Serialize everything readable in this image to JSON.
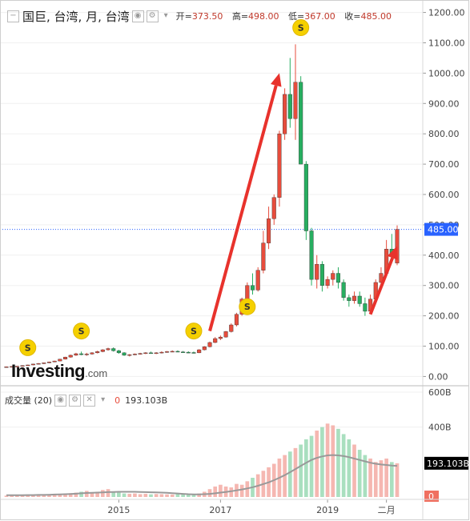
{
  "header": {
    "collapse_icon": "minus-square-icon",
    "title": "国巨, 台湾, 月, 台湾",
    "eye_icon": "eye-icon",
    "gear_icon": "gear-icon",
    "dropdown_icon": "caret-down-icon",
    "open_label": "开=",
    "open_value": "373.50",
    "high_label": "高=",
    "high_value": "498.00",
    "low_label": "低=",
    "low_value": "367.00",
    "close_label": "收=",
    "close_value": "485.00"
  },
  "volume_header": {
    "label": "成交量 (20)",
    "zero": "0",
    "value": "193.103B"
  },
  "logo": {
    "main": "Investing",
    "domain": ".com"
  },
  "colors": {
    "up": "#e74c3c",
    "down": "#27ae60",
    "up_vol": "#f5b7b1",
    "down_vol": "#a9dfbf",
    "arrow": "#e8322c",
    "price_tag": "#2962ff",
    "vol_tag": "#000000",
    "ma": "#999999"
  },
  "chart_data": [
    {
      "type": "candlestick",
      "title": "国巨, 台湾, 月, 台湾",
      "y_axis": {
        "ticks": [
          0,
          100,
          200,
          300,
          400,
          500,
          600,
          700,
          800,
          900,
          1000,
          1100,
          1200
        ],
        "tick_labels": [
          "0.00",
          "100.00",
          "200.00",
          "300.00",
          "400.00",
          "500.00",
          "600.00",
          "700.00",
          "800.00",
          "900.00",
          "1000.00",
          "1100.00",
          "1200.00"
        ],
        "range": [
          -20,
          1220
        ]
      },
      "x_axis": {
        "labels": [
          "2015",
          "2017",
          "2019",
          "二月"
        ],
        "label_index": [
          21,
          40,
          60,
          71
        ]
      },
      "current_price": {
        "value": 485,
        "label": "485.00"
      },
      "events": [
        {
          "label": "S",
          "index": 4,
          "price": 95
        },
        {
          "label": "S",
          "index": 14,
          "price": 150
        },
        {
          "label": "S",
          "index": 35,
          "price": 150
        },
        {
          "label": "S",
          "index": 45,
          "price": 230
        },
        {
          "label": "S",
          "index": 55,
          "price": 1150
        }
      ],
      "arrows": [
        {
          "from": [
            38,
            150
          ],
          "to": [
            51,
            1000
          ]
        },
        {
          "from": [
            68,
            205
          ],
          "to": [
            73,
            430
          ]
        }
      ],
      "ohlc": [
        [
          30,
          33,
          29,
          32
        ],
        [
          32,
          34,
          30,
          33
        ],
        [
          33,
          35,
          31,
          34
        ],
        [
          34,
          37,
          33,
          36
        ],
        [
          36,
          39,
          35,
          38
        ],
        [
          38,
          42,
          37,
          41
        ],
        [
          41,
          44,
          40,
          43
        ],
        [
          43,
          46,
          41,
          45
        ],
        [
          45,
          49,
          44,
          48
        ],
        [
          48,
          52,
          47,
          51
        ],
        [
          51,
          58,
          50,
          57
        ],
        [
          57,
          65,
          56,
          64
        ],
        [
          64,
          72,
          62,
          70
        ],
        [
          70,
          78,
          68,
          75
        ],
        [
          75,
          82,
          70,
          72
        ],
        [
          72,
          78,
          68,
          74
        ],
        [
          74,
          80,
          72,
          78
        ],
        [
          78,
          85,
          76,
          82
        ],
        [
          82,
          90,
          80,
          88
        ],
        [
          88,
          95,
          85,
          92
        ],
        [
          92,
          96,
          82,
          85
        ],
        [
          85,
          88,
          75,
          78
        ],
        [
          78,
          80,
          68,
          70
        ],
        [
          70,
          74,
          66,
          72
        ],
        [
          72,
          76,
          70,
          74
        ],
        [
          74,
          78,
          72,
          76
        ],
        [
          76,
          80,
          74,
          78
        ],
        [
          78,
          82,
          75,
          76
        ],
        [
          76,
          80,
          74,
          78
        ],
        [
          78,
          83,
          76,
          80
        ],
        [
          80,
          84,
          78,
          82
        ],
        [
          82,
          86,
          80,
          83
        ],
        [
          83,
          86,
          80,
          81
        ],
        [
          81,
          84,
          78,
          80
        ],
        [
          80,
          83,
          77,
          79
        ],
        [
          79,
          82,
          76,
          78
        ],
        [
          78,
          90,
          77,
          88
        ],
        [
          88,
          100,
          86,
          98
        ],
        [
          98,
          115,
          96,
          112
        ],
        [
          112,
          130,
          110,
          125
        ],
        [
          125,
          135,
          120,
          130
        ],
        [
          130,
          150,
          128,
          148
        ],
        [
          148,
          175,
          145,
          170
        ],
        [
          170,
          210,
          165,
          205
        ],
        [
          205,
          260,
          200,
          255
        ],
        [
          255,
          310,
          250,
          300
        ],
        [
          300,
          340,
          270,
          285
        ],
        [
          285,
          360,
          280,
          350
        ],
        [
          350,
          480,
          340,
          440
        ],
        [
          440,
          560,
          420,
          520
        ],
        [
          520,
          600,
          500,
          590
        ],
        [
          590,
          810,
          560,
          800
        ],
        [
          800,
          950,
          780,
          930
        ],
        [
          930,
          1050,
          820,
          850
        ],
        [
          850,
          1095,
          780,
          970
        ],
        [
          970,
          990,
          700,
          700
        ],
        [
          700,
          710,
          450,
          480
        ],
        [
          480,
          490,
          300,
          320
        ],
        [
          320,
          400,
          290,
          370
        ],
        [
          370,
          380,
          280,
          300
        ],
        [
          300,
          330,
          290,
          320
        ],
        [
          320,
          350,
          300,
          340
        ],
        [
          340,
          360,
          290,
          310
        ],
        [
          310,
          320,
          250,
          260
        ],
        [
          260,
          270,
          230,
          250
        ],
        [
          250,
          280,
          240,
          265
        ],
        [
          265,
          280,
          230,
          240
        ],
        [
          240,
          260,
          200,
          215
        ],
        [
          215,
          270,
          210,
          255
        ],
        [
          255,
          320,
          250,
          310
        ],
        [
          310,
          360,
          300,
          340
        ],
        [
          340,
          450,
          330,
          420
        ],
        [
          420,
          470,
          380,
          400
        ],
        [
          374,
          498,
          367,
          485
        ]
      ]
    },
    {
      "type": "bar",
      "title": "成交量 (20)",
      "y_axis": {
        "ticks": [
          0,
          400,
          600
        ],
        "tick_labels": [
          "0",
          "400B",
          "600B"
        ],
        "range": [
          0,
          600
        ]
      },
      "current_value": {
        "value": 193.103,
        "label": "193.103B"
      },
      "values": [
        8,
        9,
        10,
        9,
        11,
        12,
        13,
        12,
        14,
        15,
        18,
        20,
        22,
        25,
        30,
        35,
        26,
        30,
        40,
        45,
        30,
        25,
        20,
        18,
        20,
        16,
        18,
        15,
        17,
        16,
        15,
        14,
        16,
        15,
        14,
        13,
        20,
        30,
        45,
        60,
        70,
        60,
        55,
        75,
        70,
        90,
        110,
        130,
        150,
        170,
        190,
        220,
        240,
        260,
        280,
        300,
        330,
        350,
        380,
        400,
        420,
        410,
        390,
        360,
        330,
        300,
        270,
        240,
        220,
        200,
        210,
        220,
        200,
        193
      ],
      "ma": [
        10,
        10,
        10,
        10,
        11,
        11,
        12,
        12,
        13,
        14,
        15,
        16,
        17,
        19,
        21,
        23,
        24,
        25,
        26,
        28,
        29,
        30,
        30,
        30,
        30,
        29,
        28,
        27,
        26,
        25,
        24,
        22,
        20,
        18,
        16,
        15,
        15,
        16,
        18,
        21,
        25,
        29,
        33,
        38,
        43,
        49,
        56,
        64,
        74,
        84,
        96,
        110,
        125,
        142,
        160,
        178,
        196,
        212,
        224,
        232,
        238,
        240,
        238,
        234,
        228,
        220,
        212,
        204,
        196,
        190,
        186,
        183,
        180,
        178
      ]
    }
  ]
}
